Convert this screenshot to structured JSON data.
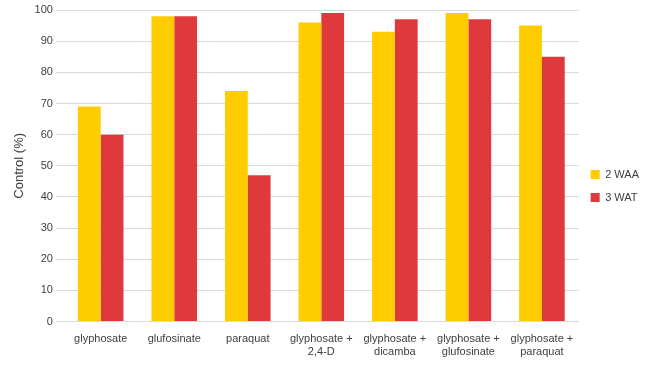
{
  "chart_data": {
    "type": "bar",
    "y_label": "Control (%)",
    "categories": [
      "glyphosate",
      "glufosinate",
      "paraquat",
      "glyphosate + 2,4-D",
      "glyphosate + dicamba",
      "glyphosate + glufosinate",
      "glyphosate + paraquat"
    ],
    "series": [
      {
        "name": "2 WAA",
        "color": "#FFCC00",
        "values": [
          69,
          98,
          74,
          96,
          93,
          99,
          95
        ]
      },
      {
        "name": "3 WAT",
        "color": "#E0393B",
        "values": [
          60,
          98,
          47,
          99,
          97,
          97,
          85
        ]
      }
    ],
    "ylim": [
      0,
      100
    ],
    "yticks": [
      0,
      10,
      20,
      30,
      40,
      50,
      60,
      70,
      80,
      90,
      100
    ],
    "grid": true,
    "legend": "right"
  }
}
